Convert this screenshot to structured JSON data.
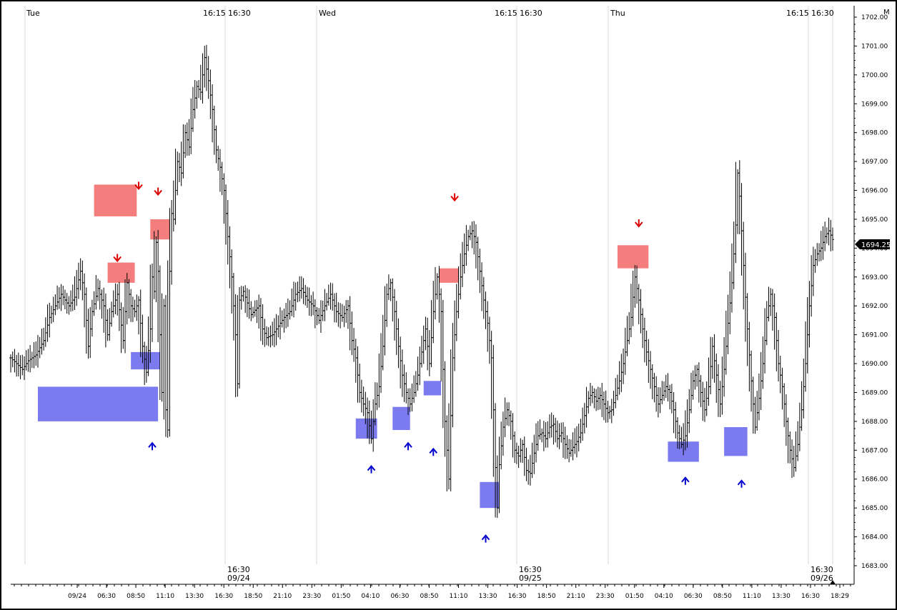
{
  "chart_data": {
    "type": "bar",
    "style": "ohlc-price-bars",
    "days": [
      "Tue",
      "Wed",
      "Thu"
    ],
    "session_labels": [
      "16:15",
      "16:30"
    ],
    "session_marks": [
      {
        "time": "16:30",
        "date": "09/24"
      },
      {
        "time": "16:30",
        "date": "09/25"
      },
      {
        "time": "16:30",
        "date": "09/26"
      }
    ],
    "x_tick_labels": [
      "09/24",
      "06:30",
      "08:50",
      "11:10",
      "13:30",
      "16:30",
      "18:50",
      "21:10",
      "23:30",
      "01:50",
      "04:10",
      "06:30",
      "08:50",
      "11:10",
      "13:30",
      "16:30",
      "18:50",
      "21:10",
      "23:30",
      "01:50",
      "04:10",
      "06:30",
      "08:50",
      "11:10",
      "13:30",
      "16:30",
      "18:29"
    ],
    "y_ticks": [
      "1702.00",
      "1701.00",
      "1700.00",
      "1699.00",
      "1698.00",
      "1697.00",
      "1696.00",
      "1695.00",
      "1694.00",
      "1693.00",
      "1692.00",
      "1691.00",
      "1690.00",
      "1689.00",
      "1688.00",
      "1687.00",
      "1686.00",
      "1685.00",
      "1684.00",
      "1683.00"
    ],
    "ylim": [
      1682.7,
      1702.4
    ],
    "current_price": "1694.25",
    "corner_label": "M",
    "price_path": [
      [
        0,
        1690.2
      ],
      [
        3,
        1690.0
      ],
      [
        6,
        1689.8
      ],
      [
        9,
        1690.1
      ],
      [
        13,
        1690.3
      ],
      [
        17,
        1690.8
      ],
      [
        20,
        1691.6
      ],
      [
        23,
        1692.0
      ],
      [
        26,
        1692.4
      ],
      [
        30,
        1692.0
      ],
      [
        33,
        1692.3
      ],
      [
        36,
        1693.2
      ],
      [
        38,
        1692.4
      ],
      [
        40,
        1690.6
      ],
      [
        42,
        1691.8
      ],
      [
        45,
        1692.6
      ],
      [
        48,
        1692.0
      ],
      [
        50,
        1691.0
      ],
      [
        52,
        1691.8
      ],
      [
        55,
        1692.4
      ],
      [
        58,
        1690.8
      ],
      [
        60,
        1692.8
      ],
      [
        62,
        1692.0
      ],
      [
        64,
        1691.8
      ],
      [
        66,
        1692.2
      ],
      [
        68,
        1690.6
      ],
      [
        70,
        1689.7
      ],
      [
        72,
        1691.2
      ],
      [
        73,
        1693.0
      ],
      [
        74,
        1692.5
      ],
      [
        75,
        1694.2
      ],
      [
        76,
        1693.2
      ],
      [
        77,
        1691.0
      ],
      [
        78,
        1689.0
      ],
      [
        79,
        1692.0
      ],
      [
        80,
        1688.4
      ],
      [
        81,
        1687.7
      ],
      [
        82,
        1693.2
      ],
      [
        83,
        1695.2
      ],
      [
        84,
        1695.0
      ],
      [
        85,
        1696.0
      ],
      [
        86,
        1697.0
      ],
      [
        88,
        1696.6
      ],
      [
        90,
        1698.0
      ],
      [
        92,
        1697.5
      ],
      [
        94,
        1698.8
      ],
      [
        96,
        1699.6
      ],
      [
        98,
        1699.4
      ],
      [
        100,
        1700.6
      ],
      [
        102,
        1699.8
      ],
      [
        104,
        1698.8
      ],
      [
        106,
        1697.4
      ],
      [
        108,
        1696.8
      ],
      [
        110,
        1696.0
      ],
      [
        112,
        1694.4
      ],
      [
        114,
        1693.0
      ],
      [
        116,
        1691.0
      ],
      [
        117,
        1689.3
      ],
      [
        118,
        1692.2
      ],
      [
        120,
        1692.5
      ],
      [
        124,
        1691.7
      ],
      [
        128,
        1692.0
      ],
      [
        130,
        1691.2
      ],
      [
        132,
        1690.9
      ],
      [
        135,
        1691.0
      ],
      [
        138,
        1691.3
      ],
      [
        141,
        1691.6
      ],
      [
        144,
        1691.8
      ],
      [
        147,
        1692.4
      ],
      [
        150,
        1692.6
      ],
      [
        153,
        1692.2
      ],
      [
        156,
        1692.0
      ],
      [
        159,
        1691.5
      ],
      [
        162,
        1692.0
      ],
      [
        165,
        1692.4
      ],
      [
        168,
        1691.8
      ],
      [
        171,
        1691.6
      ],
      [
        174,
        1692.0
      ],
      [
        176,
        1690.8
      ],
      [
        178,
        1690.2
      ],
      [
        180,
        1689.0
      ],
      [
        182,
        1688.6
      ],
      [
        184,
        1688.3
      ],
      [
        186,
        1687.4
      ],
      [
        188,
        1688.6
      ],
      [
        190,
        1689.2
      ],
      [
        192,
        1690.6
      ],
      [
        194,
        1692.4
      ],
      [
        196,
        1692.8
      ],
      [
        198,
        1691.8
      ],
      [
        200,
        1690.6
      ],
      [
        202,
        1689.6
      ],
      [
        204,
        1689.0
      ],
      [
        206,
        1688.6
      ],
      [
        208,
        1689.0
      ],
      [
        210,
        1689.6
      ],
      [
        212,
        1690.4
      ],
      [
        214,
        1691.2
      ],
      [
        216,
        1690.0
      ],
      [
        218,
        1691.8
      ],
      [
        220,
        1693.0
      ],
      [
        222,
        1691.8
      ],
      [
        223,
        1689.8
      ],
      [
        224,
        1688.0
      ],
      [
        225,
        1687.0
      ],
      [
        226,
        1686.0
      ],
      [
        227,
        1688.2
      ],
      [
        228,
        1690.2
      ],
      [
        230,
        1691.8
      ],
      [
        232,
        1693.0
      ],
      [
        234,
        1693.8
      ],
      [
        236,
        1694.4
      ],
      [
        238,
        1694.6
      ],
      [
        240,
        1694.2
      ],
      [
        242,
        1693.2
      ],
      [
        244,
        1692.2
      ],
      [
        246,
        1691.4
      ],
      [
        248,
        1690.2
      ],
      [
        249,
        1688.4
      ],
      [
        250,
        1686.4
      ],
      [
        251,
        1685.0
      ],
      [
        252,
        1686.5
      ],
      [
        254,
        1687.8
      ],
      [
        256,
        1688.4
      ],
      [
        258,
        1688.0
      ],
      [
        260,
        1687.0
      ],
      [
        262,
        1686.8
      ],
      [
        264,
        1687.2
      ],
      [
        266,
        1686.3
      ],
      [
        268,
        1686.2
      ],
      [
        270,
        1686.9
      ],
      [
        272,
        1687.5
      ],
      [
        274,
        1687.6
      ],
      [
        276,
        1687.4
      ],
      [
        278,
        1687.8
      ],
      [
        280,
        1687.9
      ],
      [
        282,
        1687.4
      ],
      [
        284,
        1687.6
      ],
      [
        286,
        1687.2
      ],
      [
        288,
        1686.9
      ],
      [
        290,
        1687.1
      ],
      [
        292,
        1687.3
      ],
      [
        294,
        1687.6
      ],
      [
        296,
        1688.2
      ],
      [
        298,
        1688.8
      ],
      [
        300,
        1689.0
      ],
      [
        302,
        1688.7
      ],
      [
        304,
        1688.9
      ],
      [
        306,
        1688.6
      ],
      [
        308,
        1688.3
      ],
      [
        310,
        1688.4
      ],
      [
        312,
        1688.9
      ],
      [
        314,
        1689.4
      ],
      [
        316,
        1690.0
      ],
      [
        318,
        1690.8
      ],
      [
        320,
        1691.6
      ],
      [
        322,
        1693.0
      ],
      [
        324,
        1692.2
      ],
      [
        326,
        1691.2
      ],
      [
        328,
        1690.4
      ],
      [
        330,
        1689.8
      ],
      [
        332,
        1689.2
      ],
      [
        334,
        1688.6
      ],
      [
        336,
        1688.9
      ],
      [
        338,
        1689.2
      ],
      [
        340,
        1689.0
      ],
      [
        342,
        1688.4
      ],
      [
        344,
        1687.6
      ],
      [
        346,
        1687.2
      ],
      [
        348,
        1687.5
      ],
      [
        350,
        1688.4
      ],
      [
        352,
        1689.4
      ],
      [
        354,
        1689.8
      ],
      [
        356,
        1689.0
      ],
      [
        358,
        1688.4
      ],
      [
        360,
        1689.2
      ],
      [
        362,
        1690.6
      ],
      [
        364,
        1689.6
      ],
      [
        366,
        1688.6
      ],
      [
        368,
        1689.8
      ],
      [
        370,
        1691.4
      ],
      [
        372,
        1692.8
      ],
      [
        374,
        1694.8
      ],
      [
        375,
        1696.6
      ],
      [
        376,
        1695.8
      ],
      [
        378,
        1693.4
      ],
      [
        380,
        1691.2
      ],
      [
        382,
        1689.4
      ],
      [
        384,
        1687.8
      ],
      [
        386,
        1688.8
      ],
      [
        388,
        1690.0
      ],
      [
        390,
        1691.6
      ],
      [
        392,
        1692.4
      ],
      [
        394,
        1691.6
      ],
      [
        396,
        1690.0
      ],
      [
        398,
        1689.2
      ],
      [
        400,
        1688.0
      ],
      [
        402,
        1687.0
      ],
      [
        404,
        1686.4
      ],
      [
        406,
        1687.2
      ],
      [
        408,
        1688.4
      ],
      [
        410,
        1690.0
      ],
      [
        412,
        1692.0
      ],
      [
        414,
        1693.4
      ],
      [
        416,
        1693.8
      ],
      [
        418,
        1694.0
      ],
      [
        420,
        1694.4
      ],
      [
        422,
        1694.6
      ],
      [
        424,
        1694.3
      ]
    ],
    "zones": [
      {
        "kind": "resistance",
        "x0": 43,
        "x1": 65,
        "y0": 1695.1,
        "y1": 1696.2
      },
      {
        "kind": "resistance",
        "x0": 50,
        "x1": 64,
        "y0": 1692.8,
        "y1": 1693.5
      },
      {
        "kind": "resistance",
        "x0": 72,
        "x1": 82,
        "y0": 1694.3,
        "y1": 1695.0
      },
      {
        "kind": "resistance",
        "x0": 221,
        "x1": 231,
        "y0": 1692.8,
        "y1": 1693.3
      },
      {
        "kind": "resistance",
        "x0": 313,
        "x1": 329,
        "y0": 1693.3,
        "y1": 1694.1
      },
      {
        "kind": "support",
        "x0": 14,
        "x1": 76,
        "y0": 1688.0,
        "y1": 1689.2
      },
      {
        "kind": "support",
        "x0": 62,
        "x1": 77,
        "y0": 1689.8,
        "y1": 1690.4
      },
      {
        "kind": "support",
        "x0": 178,
        "x1": 189,
        "y0": 1687.4,
        "y1": 1688.1
      },
      {
        "kind": "support",
        "x0": 197,
        "x1": 206,
        "y0": 1687.7,
        "y1": 1688.5
      },
      {
        "kind": "support",
        "x0": 213,
        "x1": 222,
        "y0": 1688.9,
        "y1": 1689.4
      },
      {
        "kind": "support",
        "x0": 242,
        "x1": 252,
        "y0": 1685.0,
        "y1": 1685.9
      },
      {
        "kind": "support",
        "x0": 339,
        "x1": 355,
        "y0": 1686.6,
        "y1": 1687.3
      },
      {
        "kind": "support",
        "x0": 368,
        "x1": 380,
        "y0": 1686.8,
        "y1": 1687.8
      }
    ],
    "signals": [
      {
        "dir": "down",
        "x": 66,
        "y": 1696.1
      },
      {
        "dir": "down",
        "x": 76,
        "y": 1695.9
      },
      {
        "dir": "down",
        "x": 55,
        "y": 1693.6
      },
      {
        "dir": "down",
        "x": 229,
        "y": 1695.7
      },
      {
        "dir": "down",
        "x": 324,
        "y": 1694.8
      },
      {
        "dir": "up",
        "x": 73,
        "y": 1687.2
      },
      {
        "dir": "up",
        "x": 186,
        "y": 1686.4
      },
      {
        "dir": "up",
        "x": 205,
        "y": 1687.2
      },
      {
        "dir": "up",
        "x": 218,
        "y": 1687.0
      },
      {
        "dir": "up",
        "x": 245,
        "y": 1684.0
      },
      {
        "dir": "up",
        "x": 348,
        "y": 1686.0
      },
      {
        "dir": "up",
        "x": 377,
        "y": 1685.9
      }
    ],
    "colors": {
      "bars": "#000000",
      "resistance_zone": "#f47e7e",
      "support_zone": "#7b7bef",
      "down_signal": "#dd0000",
      "up_signal": "#0000cc",
      "gridline": "#d8d8d8"
    }
  }
}
